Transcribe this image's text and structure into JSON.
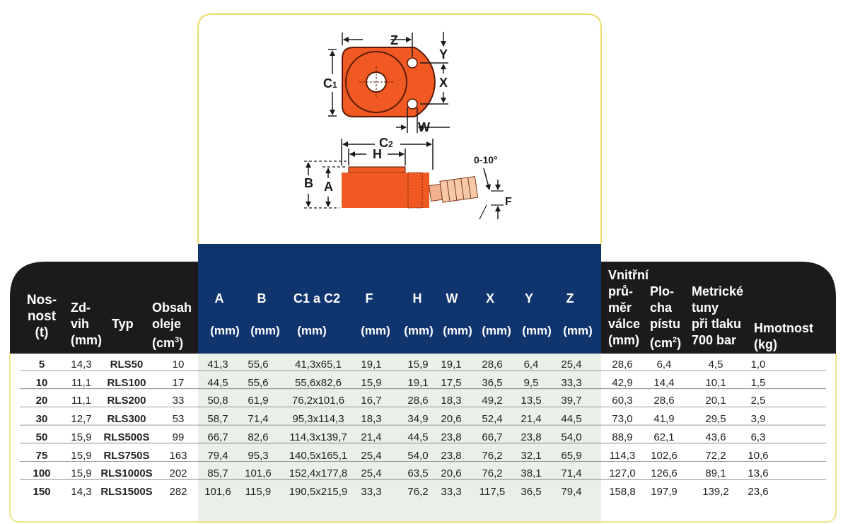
{
  "colors": {
    "dark_header": "#1c1a1a",
    "blue_header": "#10346e",
    "frame_yellow": "#eadb6a",
    "cylinder_orange": "#f05a22",
    "shade": "#e9f0e8",
    "row_line": "#7a7a7a"
  },
  "diagram": {
    "label_z": "Z",
    "label_y": "Y",
    "label_x": "X",
    "label_c1": "C",
    "label_c1_sub": "1",
    "label_w": "W",
    "label_c2": "C",
    "label_c2_sub": "2",
    "label_h": "H",
    "label_b": "B",
    "label_a": "A",
    "label_angle": "0-10°",
    "label_f": "F"
  },
  "header": {
    "nosnost": [
      "Nos-",
      "nost",
      "(t)"
    ],
    "zdvih": [
      "Zd-",
      "vih",
      "(mm)"
    ],
    "typ": "Typ",
    "obsah": [
      "Obsah",
      "oleje",
      "(cm",
      "3",
      ")"
    ],
    "blue_cols": [
      "A",
      "B",
      "C1 a C2",
      "F",
      "H",
      "W",
      "X",
      "Y",
      "Z"
    ],
    "blue_unit": "(mm)",
    "vnitrni": [
      "Vnitřní",
      "prů-",
      "měr",
      "válce",
      "(mm)"
    ],
    "plocha": [
      "Plo-",
      "cha",
      "pístu",
      "(cm",
      "2",
      ")"
    ],
    "metricke": [
      "Metrické",
      "tuny",
      "při tlaku",
      "700 bar"
    ],
    "hmotnost": [
      "Hmotnost",
      "(kg)"
    ]
  },
  "rows": [
    [
      "5",
      "14,3",
      "RLS50",
      "10",
      "41,3",
      "55,6",
      "41,3x65,1",
      "19,1",
      "15,9",
      "19,1",
      "28,6",
      "6,4",
      "25,4",
      "28,6",
      "6,4",
      "4,5",
      "1,0"
    ],
    [
      "10",
      "11,1",
      "RLS100",
      "17",
      "44,5",
      "55,6",
      "55,6x82,6",
      "15,9",
      "19,1",
      "17,5",
      "36,5",
      "9,5",
      "33,3",
      "42,9",
      "14,4",
      "10,1",
      "1,5"
    ],
    [
      "20",
      "11,1",
      "RLS200",
      "33",
      "50,8",
      "61,9",
      "76,2x101,6",
      "16,7",
      "28,6",
      "18,3",
      "49,2",
      "13,5",
      "39,7",
      "60,3",
      "28,6",
      "20,1",
      "2,5"
    ],
    [
      "30",
      "12,7",
      "RLS300",
      "53",
      "58,7",
      "71,4",
      "95,3x114,3",
      "18,3",
      "34,9",
      "20,6",
      "52,4",
      "21,4",
      "44,5",
      "73,0",
      "41,9",
      "29,5",
      "3,9"
    ],
    [
      "50",
      "15,9",
      "RLS500S",
      "99",
      "66,7",
      "82,6",
      "114,3x139,7",
      "21,4",
      "44,5",
      "23,8",
      "66,7",
      "23,8",
      "54,0",
      "88,9",
      "62,1",
      "43,6",
      "6,3"
    ],
    [
      "75",
      "15,9",
      "RLS750S",
      "163",
      "79,4",
      "95,3",
      "140,5x165,1",
      "25,4",
      "54,0",
      "23,8",
      "76,2",
      "32,1",
      "65,9",
      "114,3",
      "102,6",
      "72,2",
      "10,6"
    ],
    [
      "100",
      "15,9",
      "RLS1000S",
      "202",
      "85,7",
      "101,6",
      "152,4x177,8",
      "25,4",
      "63,5",
      "20,6",
      "76,2",
      "38,1",
      "71,4",
      "127,0",
      "126,6",
      "89,1",
      "13,6"
    ],
    [
      "150",
      "14,3",
      "RLS1500S",
      "282",
      "101,6",
      "115,9",
      "190,5x215,9",
      "33,3",
      "76,2",
      "33,3",
      "117,5",
      "36,5",
      "79,4",
      "158,8",
      "197,9",
      "139,2",
      "23,6"
    ]
  ]
}
